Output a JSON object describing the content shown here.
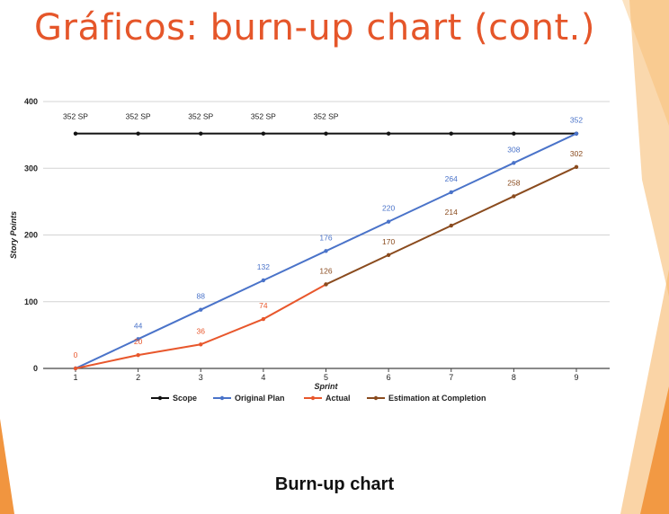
{
  "slide": {
    "title": "Gráficos: burn-up chart (cont.)",
    "caption": "Burn-up chart",
    "title_color": "#e5562a",
    "accent_colors": [
      "#f08a2a",
      "#f6b86a",
      "#fbd7a8"
    ]
  },
  "chart_data": {
    "type": "line",
    "xlabel": "Sprint",
    "ylabel": "Story Points",
    "x": [
      1,
      2,
      3,
      4,
      5,
      6,
      7,
      8,
      9
    ],
    "xticks": [
      "1",
      "2",
      "3",
      "4",
      "5",
      "6",
      "7",
      "8",
      "9"
    ],
    "ylim": [
      0,
      400
    ],
    "yticks": [
      "0",
      "100",
      "200",
      "300",
      "400"
    ],
    "ytick_values": [
      0,
      100,
      200,
      300,
      400
    ],
    "grid": "horizontal",
    "legend_position": "bottom",
    "series": [
      {
        "name": "Scope",
        "color": "#111111",
        "x": [
          1,
          2,
          3,
          4,
          5,
          6,
          7,
          8,
          9
        ],
        "values": [
          352,
          352,
          352,
          352,
          352,
          352,
          352,
          352,
          352
        ],
        "labels": [
          "352 SP",
          "352 SP",
          "352 SP",
          "352 SP",
          "352 SP",
          "",
          "",
          "",
          ""
        ]
      },
      {
        "name": "Original Plan",
        "color": "#4a73c9",
        "x": [
          1,
          2,
          3,
          4,
          5,
          6,
          7,
          8,
          9
        ],
        "values": [
          0,
          44,
          88,
          132,
          176,
          220,
          264,
          308,
          352
        ],
        "labels": [
          "",
          "44",
          "88",
          "132",
          "176",
          "220",
          "264",
          "308",
          "352"
        ]
      },
      {
        "name": "Actual",
        "color": "#e8572c",
        "x": [
          1,
          2,
          3,
          4,
          5
        ],
        "values": [
          0,
          20,
          36,
          74,
          126
        ],
        "labels": [
          "0",
          "20",
          "36",
          "74",
          ""
        ]
      },
      {
        "name": "Estimation at Completion",
        "color": "#8a4b1e",
        "x": [
          5,
          6,
          7,
          8,
          9
        ],
        "values": [
          126,
          170,
          214,
          258,
          302
        ],
        "labels": [
          "126",
          "170",
          "214",
          "258",
          "302"
        ]
      }
    ]
  }
}
